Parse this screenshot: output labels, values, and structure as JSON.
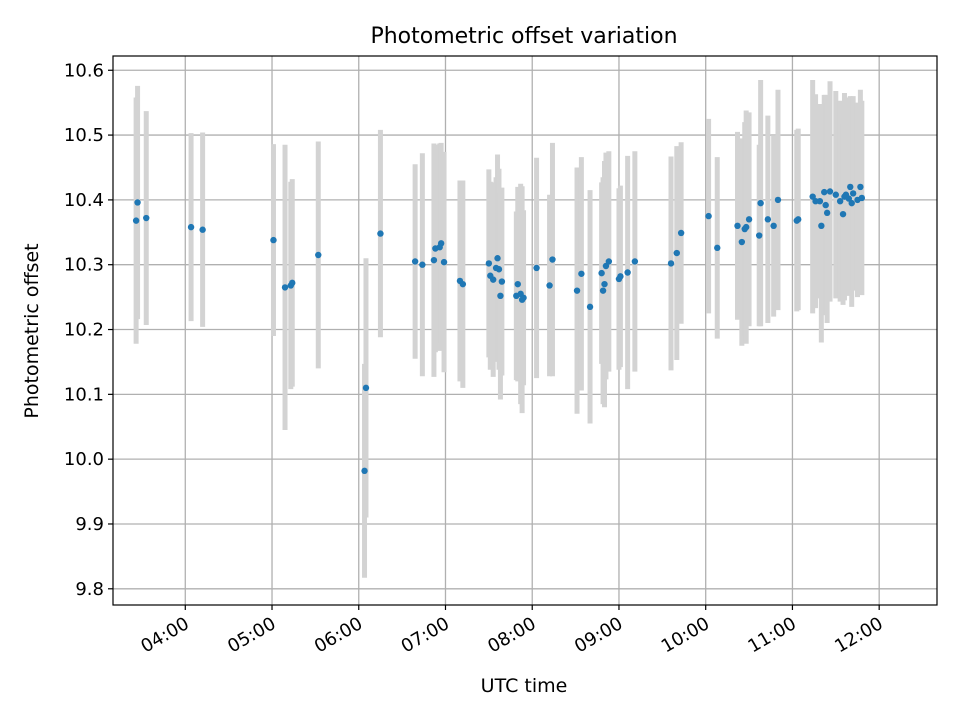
{
  "chart_data": {
    "type": "scatter",
    "title": "Photometric offset variation",
    "xlabel": "UTC time",
    "ylabel": "Photometric offset",
    "x_tick_labels": [
      "04:00",
      "05:00",
      "06:00",
      "07:00",
      "08:00",
      "09:00",
      "10:00",
      "11:00",
      "12:00"
    ],
    "y_tick_labels": [
      "9.8",
      "9.9",
      "10.0",
      "10.1",
      "10.2",
      "10.3",
      "10.4",
      "10.5",
      "10.6"
    ],
    "xlim": [
      "03:10",
      "12:40"
    ],
    "ylim": [
      9.775,
      10.622
    ],
    "grid": true,
    "colors": {
      "point": "#1f77b4",
      "errorbar": "#d3d3d3",
      "grid": "#b0b0b0"
    },
    "series": [
      {
        "x": [
          "03:26",
          "03:27",
          "03:33",
          "04:04",
          "04:12",
          "05:01",
          "05:09",
          "05:13",
          "05:14",
          "05:32",
          "06:04",
          "06:05",
          "06:15",
          "06:39",
          "06:44",
          "06:52",
          "06:53",
          "06:56",
          "06:57",
          "06:59",
          "07:10",
          "07:12",
          "07:30",
          "07:31",
          "07:33",
          "07:35",
          "07:36",
          "07:37",
          "07:38",
          "07:39",
          "07:49",
          "07:50",
          "07:52",
          "07:53",
          "07:54",
          "08:03",
          "08:12",
          "08:14",
          "08:31",
          "08:34",
          "08:40",
          "08:48",
          "08:49",
          "08:50",
          "08:51",
          "08:53",
          "09:00",
          "09:01",
          "09:06",
          "09:11",
          "09:36",
          "09:40",
          "09:43",
          "10:02",
          "10:08",
          "10:22",
          "10:25",
          "10:27",
          "10:28",
          "10:30",
          "10:37",
          "10:38",
          "10:43",
          "10:47",
          "10:50",
          "11:03",
          "11:04",
          "11:14",
          "11:16",
          "11:19",
          "11:20",
          "11:22",
          "11:23",
          "11:24",
          "11:26",
          "11:30",
          "11:33",
          "11:35",
          "11:36",
          "11:37",
          "11:39",
          "11:40",
          "11:41",
          "11:42",
          "11:45",
          "11:47",
          "11:48"
        ],
        "y": [
          10.368,
          10.396,
          10.372,
          10.358,
          10.354,
          10.338,
          10.265,
          10.268,
          10.272,
          10.315,
          9.982,
          10.11,
          10.348,
          10.305,
          10.3,
          10.307,
          10.325,
          10.327,
          10.333,
          10.304,
          10.275,
          10.27,
          10.302,
          10.283,
          10.277,
          10.295,
          10.31,
          10.293,
          10.252,
          10.274,
          10.252,
          10.27,
          10.255,
          10.246,
          10.249,
          10.295,
          10.268,
          10.308,
          10.26,
          10.286,
          10.235,
          10.287,
          10.26,
          10.27,
          10.298,
          10.305,
          10.278,
          10.282,
          10.288,
          10.305,
          10.302,
          10.318,
          10.349,
          10.375,
          10.326,
          10.36,
          10.335,
          10.355,
          10.358,
          10.37,
          10.345,
          10.395,
          10.37,
          10.36,
          10.4,
          10.368,
          10.37,
          10.405,
          10.398,
          10.398,
          10.36,
          10.412,
          10.392,
          10.38,
          10.413,
          10.408,
          10.398,
          10.378,
          10.405,
          10.408,
          10.402,
          10.42,
          10.395,
          10.41,
          10.4,
          10.42,
          10.403
        ],
        "err": [
          0.19,
          0.18,
          0.165,
          0.145,
          0.15,
          0.148,
          0.22,
          0.16,
          0.16,
          0.175,
          0.165,
          0.2,
          0.16,
          0.15,
          0.172,
          0.18,
          0.16,
          0.16,
          0.155,
          0.17,
          0.155,
          0.16,
          0.145,
          0.145,
          0.15,
          0.14,
          0.16,
          0.155,
          0.16,
          0.145,
          0.13,
          0.15,
          0.17,
          0.175,
          0.135,
          0.17,
          0.14,
          0.18,
          0.19,
          0.18,
          0.18,
          0.14,
          0.175,
          0.19,
          0.175,
          0.17,
          0.14,
          0.14,
          0.18,
          0.17,
          0.165,
          0.165,
          0.14,
          0.15,
          0.14,
          0.145,
          0.16,
          0.165,
          0.18,
          0.165,
          0.14,
          0.19,
          0.16,
          0.14,
          0.17,
          0.14,
          0.14,
          0.18,
          0.165,
          0.15,
          0.18,
          0.15,
          0.17,
          0.17,
          0.17,
          0.16,
          0.155,
          0.14,
          0.16,
          0.15,
          0.15,
          0.14,
          0.16,
          0.15,
          0.15,
          0.15,
          0.15
        ]
      }
    ]
  }
}
